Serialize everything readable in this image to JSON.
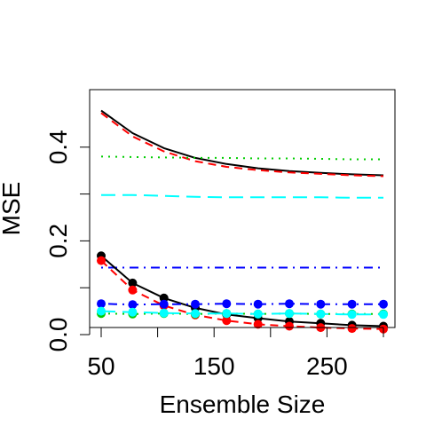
{
  "chart_data": {
    "type": "line",
    "title": "",
    "xlabel": "Ensemble Size",
    "ylabel": "MSE",
    "xlim": [
      50,
      300
    ],
    "ylim": [
      0,
      0.5
    ],
    "xticks": [
      50,
      150,
      250
    ],
    "xtick_labels": [
      "50",
      "150",
      "250"
    ],
    "xticks_unlabeled": [
      100,
      200,
      300
    ],
    "yticks": [
      0.0,
      0.2,
      0.4
    ],
    "ytick_labels": [
      "0.0",
      "0.2",
      "0.4"
    ],
    "yticks_unlabeled": [
      0.1,
      0.3
    ],
    "grid": false,
    "legend": "none",
    "x_points": [
      50,
      77.8,
      105.6,
      133.3,
      161.1,
      188.9,
      216.7,
      244.4,
      272.2,
      300
    ],
    "series": [
      {
        "color": "#000000",
        "dash": "solid",
        "values": [
          0.478,
          0.43,
          0.398,
          0.377,
          0.364,
          0.355,
          0.349,
          0.345,
          0.342,
          0.34
        ]
      },
      {
        "color": "#ff0000",
        "dash": "dashed",
        "values": [
          0.473,
          0.423,
          0.391,
          0.37,
          0.358,
          0.351,
          0.346,
          0.343,
          0.34,
          0.338
        ]
      },
      {
        "color": "#00cd00",
        "dash": "dotted",
        "values": [
          0.38,
          0.379,
          0.378,
          0.377,
          0.377,
          0.376,
          0.376,
          0.375,
          0.374,
          0.374
        ]
      },
      {
        "color": "#00ffff",
        "dash": "long-dashed",
        "values": [
          0.298,
          0.298,
          0.296,
          0.294,
          0.293,
          0.293,
          0.293,
          0.293,
          0.292,
          0.292
        ]
      },
      {
        "color": "#0000ff",
        "dash": "dot-dash",
        "values": [
          0.143,
          0.143,
          0.143,
          0.143,
          0.143,
          0.143,
          0.143,
          0.143,
          0.143,
          0.143
        ]
      },
      {
        "color": "#000000",
        "dash": "solid",
        "marker": "circle",
        "values": [
          0.168,
          0.11,
          0.078,
          0.057,
          0.043,
          0.035,
          0.028,
          0.024,
          0.02,
          0.018
        ]
      },
      {
        "color": "#ff0000",
        "dash": "dashed",
        "marker": "circle",
        "values": [
          0.158,
          0.095,
          0.062,
          0.042,
          0.03,
          0.022,
          0.018,
          0.015,
          0.013,
          0.012
        ]
      },
      {
        "color": "#0000ff",
        "dash": "dot-dash",
        "marker": "circle",
        "values": [
          0.066,
          0.064,
          0.065,
          0.065,
          0.066,
          0.065,
          0.066,
          0.065,
          0.065,
          0.065
        ]
      },
      {
        "color": "#00cd00",
        "dash": "dotted",
        "marker": "circle",
        "values": [
          0.045,
          0.044,
          0.045,
          0.044,
          0.045,
          0.044,
          0.045,
          0.044,
          0.044,
          0.044
        ]
      },
      {
        "color": "#00ffff",
        "dash": "long-dashed",
        "marker": "circle",
        "values": [
          0.05,
          0.048,
          0.046,
          0.045,
          0.045,
          0.044,
          0.045,
          0.044,
          0.043,
          0.043
        ]
      }
    ]
  }
}
